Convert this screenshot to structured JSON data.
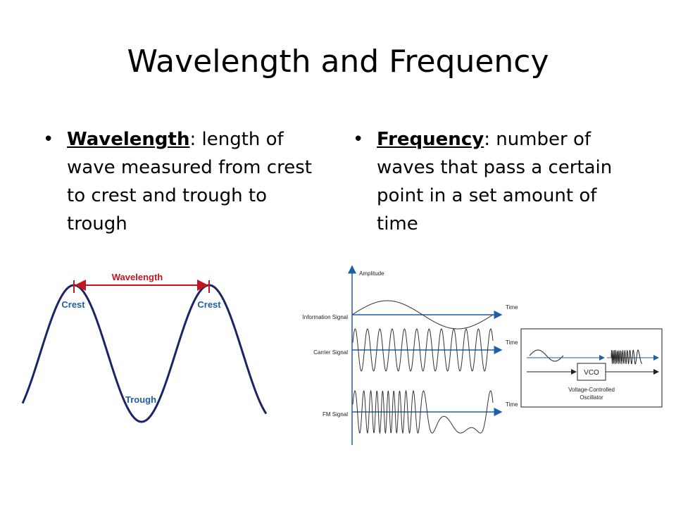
{
  "title": "Wavelength and Frequency",
  "bullets": [
    {
      "term": "Wavelength",
      "text": ": length of wave measured from crest to crest and trough to trough"
    },
    {
      "term": "Frequency",
      "text": ": number of waves that pass a certain point in a set amount of time"
    }
  ],
  "wave_diagram": {
    "wavelength_label": "Wavelength",
    "crest_labels": [
      "Crest",
      "Crest"
    ],
    "trough_label": "Trough"
  },
  "fm_diagram": {
    "y_axis_label": "Amplitude",
    "signals": [
      {
        "name": "Information Signal",
        "axis_label": "Time"
      },
      {
        "name": "Carrier Signal",
        "axis_label": "Time"
      },
      {
        "name": "FM Signal",
        "axis_label": "Time"
      }
    ],
    "vco_label": "VCO",
    "vco_caption": [
      "Voltage-Controlled",
      "Oscillator"
    ]
  }
}
